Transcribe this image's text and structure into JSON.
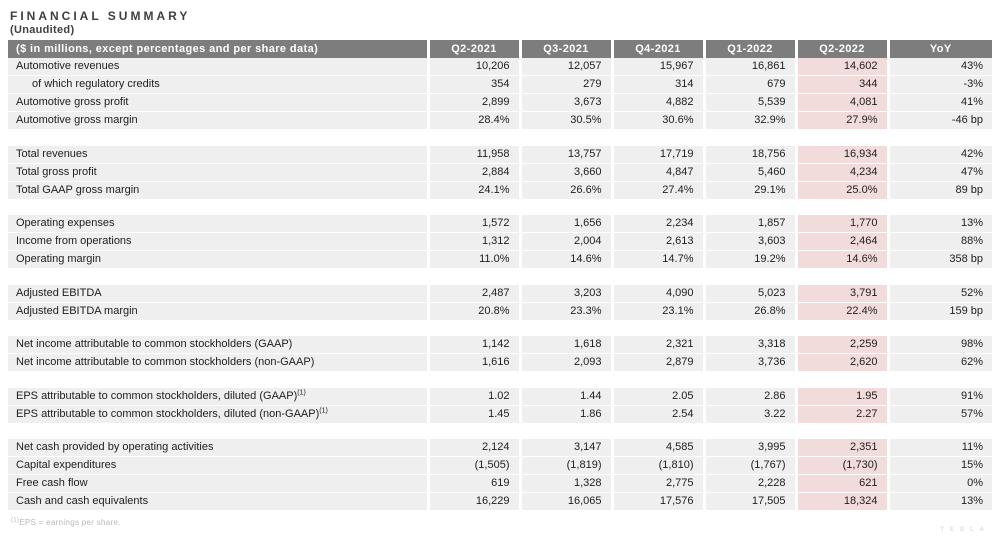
{
  "title": "FINANCIAL SUMMARY",
  "subtitle": "(Unaudited)",
  "table": {
    "label_header": "($ in millions, except percentages and per share data)",
    "columns": [
      "Q2-2021",
      "Q3-2021",
      "Q4-2021",
      "Q1-2022",
      "Q2-2022",
      "YoY"
    ],
    "highlight_column": "Q2-2022",
    "highlight_column_index": 4,
    "blocks": [
      {
        "rows": [
          {
            "label": "Automotive revenues",
            "indent": false,
            "sup": "",
            "values": [
              "10,206",
              "12,057",
              "15,967",
              "16,861",
              "14,602"
            ],
            "yoy": "43%"
          },
          {
            "label": "of which regulatory credits",
            "indent": true,
            "sup": "",
            "values": [
              "354",
              "279",
              "314",
              "679",
              "344"
            ],
            "yoy": "-3%"
          },
          {
            "label": "Automotive gross profit",
            "indent": false,
            "sup": "",
            "values": [
              "2,899",
              "3,673",
              "4,882",
              "5,539",
              "4,081"
            ],
            "yoy": "41%"
          },
          {
            "label": "Automotive gross margin",
            "indent": false,
            "sup": "",
            "values": [
              "28.4%",
              "30.5%",
              "30.6%",
              "32.9%",
              "27.9%"
            ],
            "yoy": "-46 bp"
          }
        ]
      },
      {
        "rows": [
          {
            "label": "Total revenues",
            "indent": false,
            "sup": "",
            "values": [
              "11,958",
              "13,757",
              "17,719",
              "18,756",
              "16,934"
            ],
            "yoy": "42%"
          },
          {
            "label": "Total gross profit",
            "indent": false,
            "sup": "",
            "values": [
              "2,884",
              "3,660",
              "4,847",
              "5,460",
              "4,234"
            ],
            "yoy": "47%"
          },
          {
            "label": "Total GAAP gross margin",
            "indent": false,
            "sup": "",
            "values": [
              "24.1%",
              "26.6%",
              "27.4%",
              "29.1%",
              "25.0%"
            ],
            "yoy": "89 bp"
          }
        ]
      },
      {
        "rows": [
          {
            "label": "Operating expenses",
            "indent": false,
            "sup": "",
            "values": [
              "1,572",
              "1,656",
              "2,234",
              "1,857",
              "1,770"
            ],
            "yoy": "13%"
          },
          {
            "label": "Income from operations",
            "indent": false,
            "sup": "",
            "values": [
              "1,312",
              "2,004",
              "2,613",
              "3,603",
              "2,464"
            ],
            "yoy": "88%"
          },
          {
            "label": "Operating margin",
            "indent": false,
            "sup": "",
            "values": [
              "11.0%",
              "14.6%",
              "14.7%",
              "19.2%",
              "14.6%"
            ],
            "yoy": "358 bp"
          }
        ]
      },
      {
        "rows": [
          {
            "label": "Adjusted EBITDA",
            "indent": false,
            "sup": "",
            "values": [
              "2,487",
              "3,203",
              "4,090",
              "5,023",
              "3,791"
            ],
            "yoy": "52%"
          },
          {
            "label": "Adjusted EBITDA margin",
            "indent": false,
            "sup": "",
            "values": [
              "20.8%",
              "23.3%",
              "23.1%",
              "26.8%",
              "22.4%"
            ],
            "yoy": "159 bp"
          }
        ]
      },
      {
        "rows": [
          {
            "label": "Net income attributable to common stockholders (GAAP)",
            "indent": false,
            "sup": "",
            "values": [
              "1,142",
              "1,618",
              "2,321",
              "3,318",
              "2,259"
            ],
            "yoy": "98%"
          },
          {
            "label": "Net income attributable to common stockholders (non-GAAP)",
            "indent": false,
            "sup": "",
            "values": [
              "1,616",
              "2,093",
              "2,879",
              "3,736",
              "2,620"
            ],
            "yoy": "62%"
          }
        ]
      },
      {
        "rows": [
          {
            "label": "EPS attributable to common stockholders, diluted (GAAP)",
            "indent": false,
            "sup": "(1)",
            "values": [
              "1.02",
              "1.44",
              "2.05",
              "2.86",
              "1.95"
            ],
            "yoy": "91%"
          },
          {
            "label": "EPS attributable to common stockholders, diluted (non-GAAP)",
            "indent": false,
            "sup": "(1)",
            "values": [
              "1.45",
              "1.86",
              "2.54",
              "3.22",
              "2.27"
            ],
            "yoy": "57%"
          }
        ]
      },
      {
        "rows": [
          {
            "label": "Net cash provided by operating activities",
            "indent": false,
            "sup": "",
            "values": [
              "2,124",
              "3,147",
              "4,585",
              "3,995",
              "2,351"
            ],
            "yoy": "11%"
          },
          {
            "label": "Capital expenditures",
            "indent": false,
            "sup": "",
            "values": [
              "(1,505)",
              "(1,819)",
              "(1,810)",
              "(1,767)",
              "(1,730)"
            ],
            "yoy": "15%"
          },
          {
            "label": "Free cash flow",
            "indent": false,
            "sup": "",
            "values": [
              "619",
              "1,328",
              "2,775",
              "2,228",
              "621"
            ],
            "yoy": "0%"
          },
          {
            "label": "Cash and cash equivalents",
            "indent": false,
            "sup": "",
            "values": [
              "16,229",
              "16,065",
              "17,576",
              "17,505",
              "18,324"
            ],
            "yoy": "13%"
          }
        ]
      }
    ]
  },
  "footnote": {
    "sup": "(1)",
    "text": "EPS = earnings per share."
  },
  "watermark": "TESLA",
  "colors": {
    "header_bg": "#7d7d7d",
    "header_text": "#ffffff",
    "row_bg": "#f0efef",
    "highlight_bg": "#f2dcdb",
    "body_text": "#1d1d1d",
    "title_text": "#3f3f3f",
    "footnote_text": "#bab7b7"
  }
}
